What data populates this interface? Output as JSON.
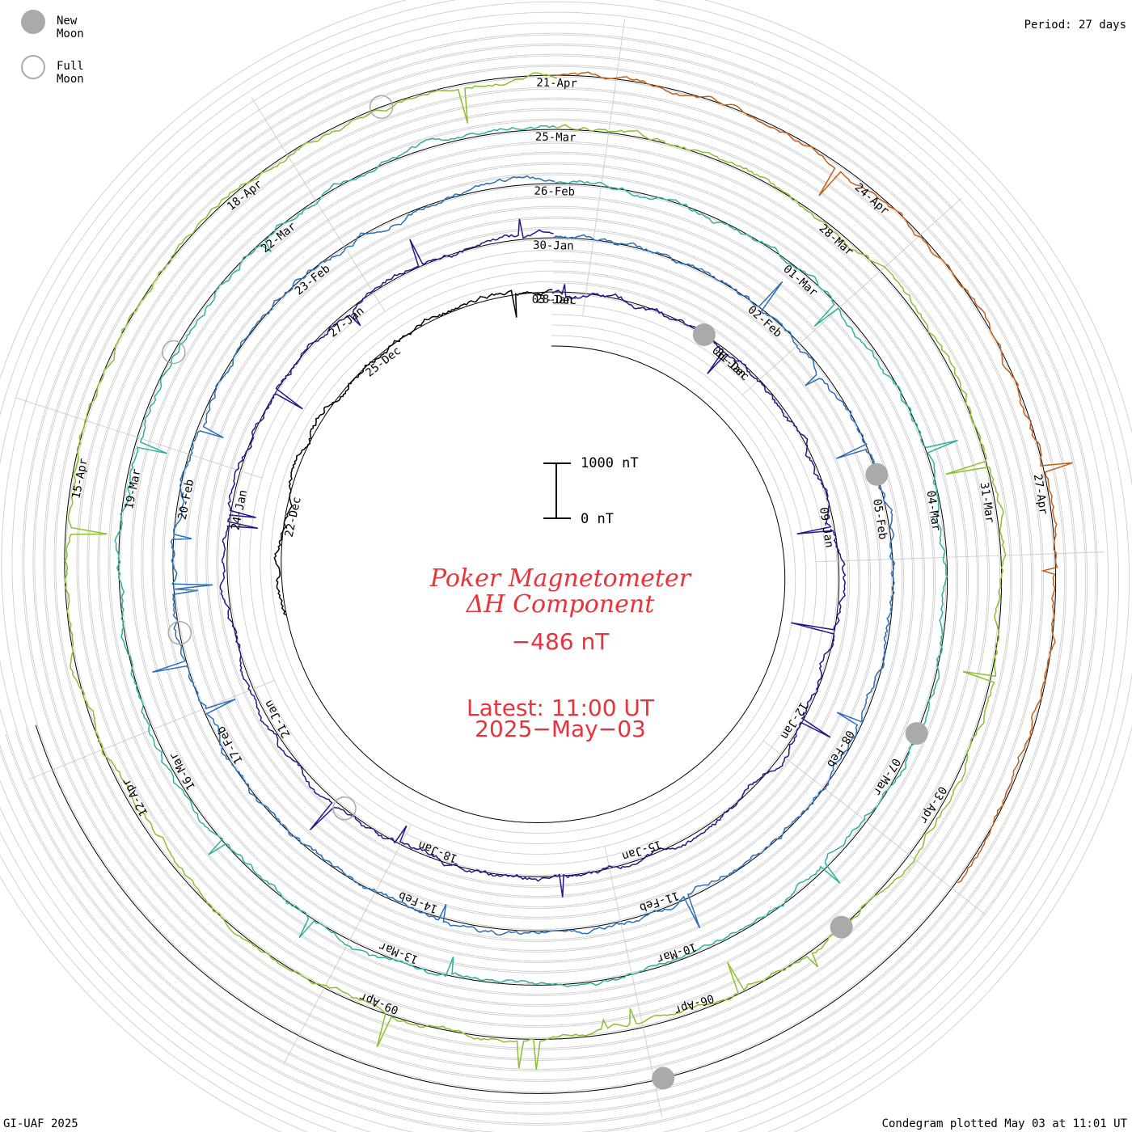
{
  "period_label": "Period: 27 days",
  "footer_left": "GI-UAF 2025",
  "footer_right": "Condegram plotted May 03 at 11:01 UT",
  "legend": {
    "new_moon": "New Moon",
    "full_moon": "Full Moon",
    "new_moon_color": "#aaaaaa",
    "full_moon_color": "#aaaaaa"
  },
  "title_line1": "Poker Magnetometer",
  "title_line2": "ΔH Component",
  "current_value": "−486 nT",
  "latest_line1": "Latest: 11:00 UT",
  "latest_line2": "2025−May−03",
  "scale_top_label": "1000 nT",
  "scale_bottom_label": "0 nT",
  "colors": {
    "title_red": "#e8333b",
    "grid": "#c8c8c8",
    "baseline": "#000000"
  },
  "chart_data": {
    "type": "line",
    "layout": "spiral condegram",
    "period_days": 27,
    "units": "nT",
    "latest_value_nT": -486,
    "scale_bar_nT": [
      0,
      1000
    ],
    "rotations": [
      {
        "name": "rotation-1",
        "color": "#000000",
        "date_labels": [
          "22-Dec",
          "25-Dec",
          "28-Dec",
          "31-Dec"
        ]
      },
      {
        "name": "rotation-2",
        "color": "#28148c",
        "date_labels": [
          "03-Jan",
          "06-Jan",
          "09-Jan",
          "12-Jan",
          "15-Jan",
          "18-Jan",
          "21-Jan",
          "24-Jan",
          "27-Jan"
        ]
      },
      {
        "name": "rotation-3",
        "color": "#2a6fb8",
        "date_labels": [
          "30-Jan",
          "02-Feb",
          "05-Feb",
          "08-Feb",
          "11-Feb",
          "14-Feb",
          "17-Feb",
          "20-Feb",
          "23-Feb"
        ]
      },
      {
        "name": "rotation-4",
        "color": "#2fb09e",
        "date_labels": [
          "26-Feb",
          "01-Mar",
          "04-Mar",
          "07-Mar",
          "10-Mar",
          "13-Mar",
          "16-Mar",
          "19-Mar",
          "22-Mar"
        ]
      },
      {
        "name": "rotation-5",
        "color": "#8cbf30",
        "date_labels": [
          "25-Mar",
          "28-Mar",
          "31-Mar",
          "03-Apr",
          "06-Apr",
          "09-Apr",
          "12-Apr",
          "15-Apr",
          "18-Apr"
        ]
      },
      {
        "name": "rotation-6",
        "color": "#c0601a",
        "date_labels": [
          "21-Apr",
          "24-Apr",
          "27-Apr"
        ]
      }
    ],
    "new_moon_dates": [
      "2024-12-30",
      "2025-01-29",
      "2025-02-28",
      "2025-03-29",
      "2025-04-27"
    ],
    "full_moon_dates": [
      "2025-01-13",
      "2025-02-12",
      "2025-03-14",
      "2025-04-13"
    ]
  }
}
